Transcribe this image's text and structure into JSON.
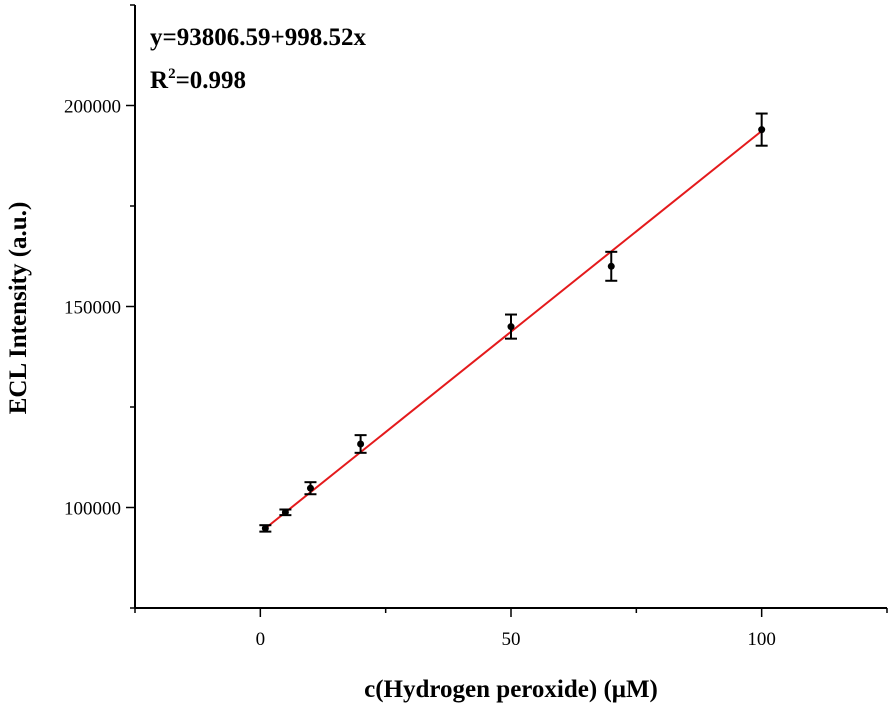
{
  "chart_data": {
    "type": "scatter",
    "xlabel": "c(Hydrogen peroxide) (μM)",
    "ylabel": "ECL Intensity (a.u.)",
    "xlim": [
      -25,
      125
    ],
    "ylim": [
      75000,
      225000
    ],
    "xticks": [
      0,
      50,
      100
    ],
    "yticks": [
      100000,
      150000,
      200000
    ],
    "xtick_labels": [
      "0",
      "50",
      "100"
    ],
    "ytick_labels": [
      "100000",
      "150000",
      "200000"
    ],
    "annotation": {
      "equation": "y=93806.59+998.52x",
      "r2_label": "R",
      "r2_sup": "2",
      "r2_value": "=0.998"
    },
    "points": [
      {
        "x": 1,
        "y": 94800,
        "err": 800
      },
      {
        "x": 5,
        "y": 98800,
        "err": 700
      },
      {
        "x": 10,
        "y": 104800,
        "err": 1500
      },
      {
        "x": 20,
        "y": 115800,
        "err": 2200
      },
      {
        "x": 50,
        "y": 145000,
        "err": 3000
      },
      {
        "x": 70,
        "y": 160000,
        "err": 3600
      },
      {
        "x": 100,
        "y": 194000,
        "err": 4000
      }
    ],
    "fit": {
      "intercept": 93806.59,
      "slope": 998.52,
      "x_range": [
        1,
        100
      ],
      "color": "#e41a1c"
    },
    "marker_color": "#000000",
    "grid": false
  }
}
